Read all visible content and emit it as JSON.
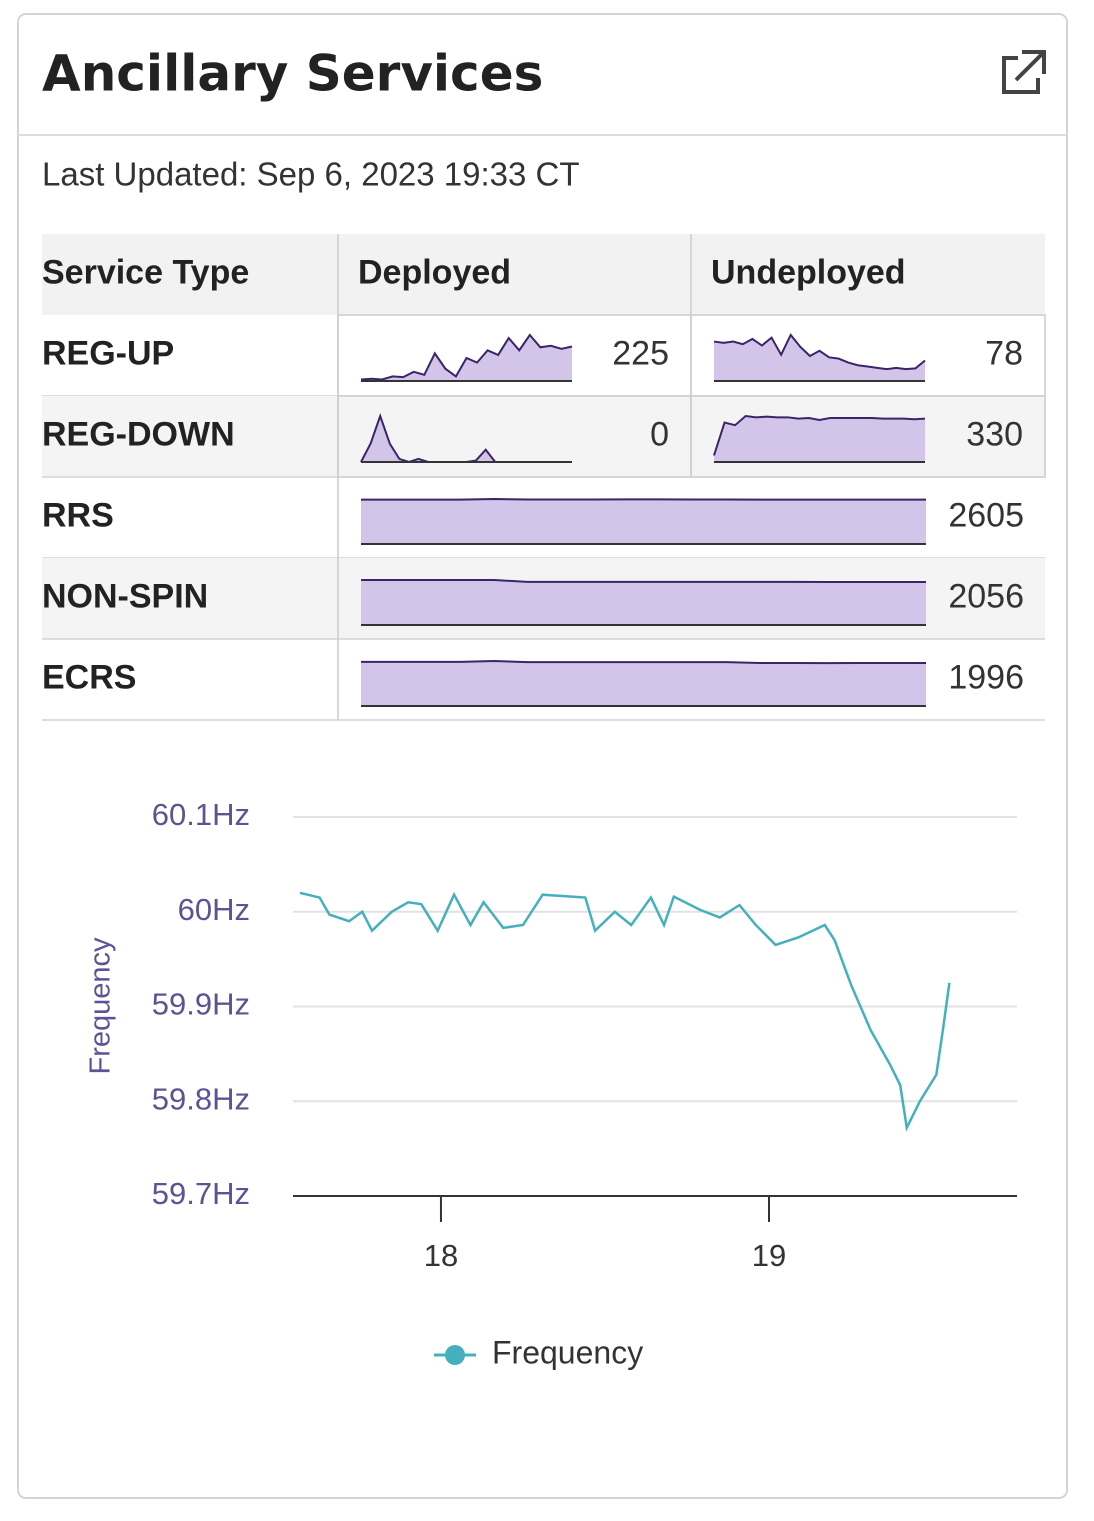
{
  "header": {
    "title": "Ancillary Services"
  },
  "last_updated": "Last Updated: Sep 6, 2023 19:33 CT",
  "table": {
    "headers": [
      "Service Type",
      "Deployed",
      "Undeployed"
    ],
    "rows": [
      {
        "name": "REG-UP",
        "deployed": {
          "value": 225,
          "spark": [
            10,
            15,
            10,
            30,
            25,
            60,
            40,
            180,
            80,
            30,
            150,
            120,
            200,
            170,
            280,
            200,
            300,
            220,
            230,
            210,
            225
          ]
        },
        "undeployed": {
          "value": 78,
          "spark": [
            150,
            145,
            150,
            140,
            160,
            135,
            165,
            100,
            175,
            130,
            95,
            115,
            90,
            85,
            70,
            60,
            55,
            50,
            45,
            50,
            45,
            48,
            78
          ]
        }
      },
      {
        "name": "REG-DOWN",
        "deployed": {
          "value": 0,
          "spark": [
            0,
            60,
            150,
            60,
            10,
            0,
            10,
            0,
            0,
            0,
            0,
            0,
            5,
            40,
            0,
            0,
            0,
            0,
            0,
            0,
            0,
            0,
            0
          ]
        },
        "undeployed": {
          "value": 330,
          "spark": [
            50,
            300,
            280,
            350,
            340,
            345,
            340,
            340,
            330,
            335,
            320,
            335,
            335,
            335,
            335,
            335,
            330,
            330,
            330,
            325,
            330
          ]
        }
      },
      {
        "name": "RRS",
        "total": {
          "value": 2605,
          "spark": [
            2600,
            2600,
            2600,
            2600,
            2640,
            2610,
            2610,
            2610,
            2615,
            2615,
            2610,
            2610,
            2605,
            2600,
            2605,
            2605,
            2605,
            2605
          ]
        }
      },
      {
        "name": "NON-SPIN",
        "total": {
          "value": 2056,
          "spark": [
            2150,
            2150,
            2150,
            2150,
            2150,
            2060,
            2060,
            2060,
            2060,
            2060,
            2060,
            2060,
            2058,
            2058,
            2056,
            2056,
            2056,
            2056
          ]
        }
      },
      {
        "name": "ECRS",
        "total": {
          "value": 1996,
          "spark": [
            2050,
            2050,
            2050,
            2050,
            2090,
            2040,
            2040,
            2040,
            2040,
            2040,
            2040,
            2040,
            2000,
            2000,
            1990,
            1996,
            1996,
            1996
          ]
        }
      }
    ]
  },
  "chart_data": {
    "type": "line",
    "y_label": "Frequency",
    "x": [
      17.57,
      17.63,
      17.66,
      17.72,
      17.76,
      17.79,
      17.85,
      17.9,
      17.94,
      17.99,
      18.04,
      18.09,
      18.13,
      18.19,
      18.25,
      18.31,
      18.44,
      18.47,
      18.53,
      18.58,
      18.64,
      18.68,
      18.71,
      18.79,
      18.85,
      18.91,
      18.96,
      19.02,
      19.09,
      19.17,
      19.2,
      19.25,
      19.31,
      19.37,
      19.4,
      19.42,
      19.46,
      19.51,
      19.53,
      19.55
    ],
    "series": [
      {
        "name": "Frequency",
        "color": "#45b0bd",
        "values": [
          60.02,
          60.015,
          59.997,
          59.99,
          60.0,
          59.98,
          60.0,
          60.01,
          60.008,
          59.98,
          60.018,
          59.986,
          60.01,
          59.983,
          59.986,
          60.018,
          60.015,
          59.98,
          60.0,
          59.986,
          60.015,
          59.986,
          60.016,
          60.002,
          59.994,
          60.007,
          59.986,
          59.965,
          59.973,
          59.986,
          59.97,
          59.923,
          59.875,
          59.838,
          59.817,
          59.772,
          59.8,
          59.828,
          59.875,
          59.925
        ]
      }
    ],
    "xlim": [
      17.549,
      19.756
    ],
    "xticks": [
      18,
      19
    ],
    "ylim": [
      59.7,
      60.1
    ],
    "yticks": [
      {
        "value": 59.7,
        "label": "59.7Hz"
      },
      {
        "value": 59.8,
        "label": "59.8Hz"
      },
      {
        "value": 59.9,
        "label": "59.9Hz"
      },
      {
        "value": 60.0,
        "label": "60Hz"
      },
      {
        "value": 60.1,
        "label": "60.1Hz"
      }
    ],
    "grid": true,
    "legend": "bottom"
  }
}
